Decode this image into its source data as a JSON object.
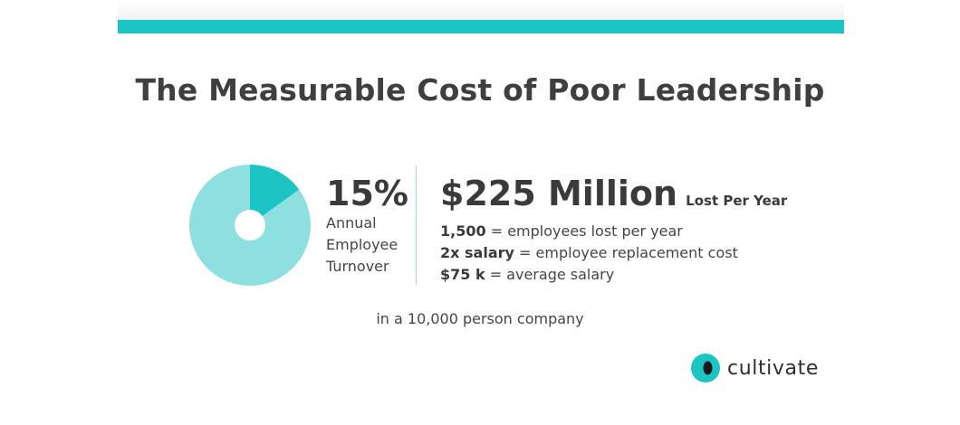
{
  "title": "The Measurable Cost of Poor Leadership",
  "colors": {
    "accent": "#1cc4c4",
    "pie_main": "#8ee0e0",
    "pie_highlight": "#1cc4c4",
    "divider": "#9fdcdc",
    "logo_dot": "#1a1a1a"
  },
  "chart_data": {
    "type": "pie",
    "donut_hole": true,
    "slices": [
      {
        "value": 15
      },
      {
        "value": 85
      }
    ]
  },
  "turnover": {
    "value": "15%",
    "label_lines": [
      "Annual",
      "Employee",
      "Turnover"
    ]
  },
  "cost": {
    "amount": "$225 Million",
    "suffix": "Lost Per Year",
    "facts": [
      {
        "term": "1,500",
        "text": " = employees lost per year"
      },
      {
        "term": "2x salary",
        "text": " = employee replacement cost"
      },
      {
        "term": "$75 k",
        "text": " = average salary"
      }
    ]
  },
  "footnote": "in a 10,000 person company",
  "logo": {
    "icon": "cultivate-logo-icon",
    "text": "cultivate"
  }
}
